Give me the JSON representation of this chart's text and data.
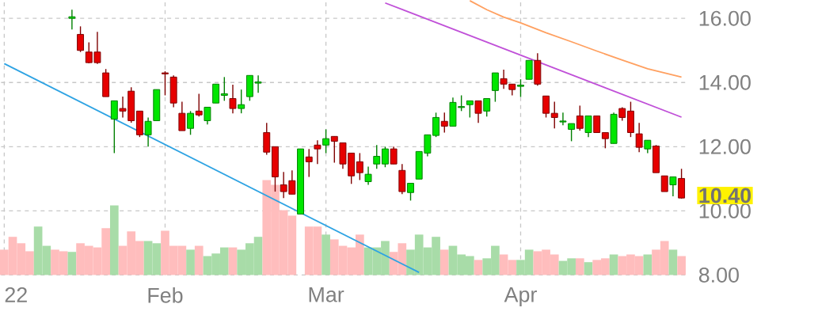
{
  "chart_data": {
    "type": "candlestick",
    "categories": [
      "22",
      null,
      null,
      null,
      null,
      null,
      null,
      null,
      null,
      null,
      null,
      null,
      null,
      null,
      null,
      null,
      null,
      null,
      null,
      "Feb",
      null,
      null,
      null,
      null,
      null,
      null,
      null,
      null,
      null,
      null,
      null,
      null,
      null,
      null,
      null,
      null,
      null,
      null,
      "Mar",
      null,
      null,
      null,
      null,
      null,
      null,
      null,
      null,
      null,
      null,
      null,
      null,
      null,
      null,
      null,
      null,
      null,
      null,
      null,
      null,
      null,
      null,
      "Apr",
      null,
      null,
      null,
      null,
      null,
      null,
      null,
      null,
      null,
      null,
      null,
      null,
      null,
      null,
      null,
      null,
      null,
      null,
      null
    ],
    "ohlc": [
      null,
      null,
      null,
      null,
      null,
      null,
      null,
      null,
      [
        16.0,
        16.27,
        15.65,
        16.05
      ],
      [
        15.5,
        15.75,
        14.95,
        15.0
      ],
      [
        14.95,
        15.25,
        14.6,
        14.62
      ],
      [
        14.95,
        15.58,
        14.58,
        14.62
      ],
      [
        14.3,
        14.42,
        13.56,
        13.56
      ],
      [
        12.86,
        13.43,
        11.8,
        13.43
      ],
      [
        13.19,
        13.56,
        12.91,
        13.11
      ],
      [
        13.73,
        13.85,
        12.75,
        12.81
      ],
      [
        13.11,
        13.11,
        12.3,
        12.37
      ],
      [
        12.37,
        12.91,
        12.0,
        12.79
      ],
      [
        12.81,
        13.78,
        12.81,
        13.78
      ],
      [
        14.3,
        14.35,
        13.6,
        14.27
      ],
      [
        14.17,
        14.22,
        13.23,
        13.36
      ],
      [
        13.04,
        13.4,
        12.5,
        12.5
      ],
      [
        12.57,
        13.11,
        12.37,
        13.04
      ],
      [
        13.11,
        13.65,
        12.94,
        12.99
      ],
      [
        12.81,
        13.23,
        12.69,
        13.23
      ],
      [
        13.36,
        13.95,
        13.36,
        13.95
      ],
      [
        13.6,
        14.17,
        13.43,
        13.65
      ],
      [
        13.5,
        13.93,
        13.04,
        13.19
      ],
      [
        13.19,
        13.78,
        13.04,
        13.31
      ],
      [
        13.56,
        14.22,
        13.43,
        14.22
      ],
      [
        13.98,
        14.22,
        13.68,
        14.02
      ],
      [
        12.44,
        12.74,
        11.75,
        11.83
      ],
      [
        12.0,
        12.0,
        10.6,
        11.06
      ],
      [
        10.81,
        11.21,
        10.4,
        10.6
      ],
      [
        10.94,
        11.26,
        10.52,
        10.52
      ],
      [
        9.9,
        11.93,
        9.9,
        11.93
      ],
      [
        11.68,
        11.93,
        11.06,
        11.53
      ],
      [
        12.05,
        12.2,
        11.46,
        11.93
      ],
      [
        12.05,
        12.54,
        11.8,
        12.25
      ],
      [
        12.32,
        12.32,
        11.5,
        12.17
      ],
      [
        12.12,
        12.12,
        11.31,
        11.46
      ],
      [
        11.8,
        11.8,
        10.84,
        11.09
      ],
      [
        11.53,
        11.8,
        10.96,
        11.19
      ],
      [
        10.91,
        11.38,
        10.81,
        11.14
      ],
      [
        11.46,
        12.05,
        11.31,
        11.7
      ],
      [
        11.46,
        12.0,
        11.36,
        11.93
      ],
      [
        11.93,
        12.0,
        11.46,
        11.46
      ],
      [
        11.26,
        11.46,
        10.52,
        10.6
      ],
      [
        10.57,
        10.86,
        10.32,
        10.86
      ],
      [
        10.99,
        11.85,
        10.99,
        11.85
      ],
      [
        11.8,
        12.37,
        11.7,
        12.37
      ],
      [
        12.35,
        13.06,
        12.3,
        12.91
      ],
      [
        12.79,
        13.06,
        12.44,
        12.64
      ],
      [
        12.64,
        13.53,
        12.64,
        13.38
      ],
      [
        13.22,
        13.6,
        13.11,
        13.25
      ],
      [
        13.31,
        13.43,
        12.91,
        13.43
      ],
      [
        13.43,
        13.43,
        12.74,
        13.04
      ],
      [
        13.11,
        13.5,
        12.94,
        13.5
      ],
      [
        13.75,
        14.3,
        13.4,
        14.3
      ],
      [
        14.12,
        14.4,
        13.8,
        13.95
      ],
      [
        13.95,
        13.95,
        13.6,
        13.78
      ],
      [
        13.88,
        14.1,
        13.55,
        13.92
      ],
      [
        14.1,
        14.69,
        14.1,
        14.69
      ],
      [
        14.69,
        14.91,
        13.9,
        13.95
      ],
      [
        13.58,
        13.58,
        12.91,
        13.04
      ],
      [
        13.04,
        13.4,
        12.57,
        12.91
      ],
      [
        12.77,
        13.06,
        12.67,
        12.8
      ],
      [
        12.54,
        12.72,
        12.17,
        12.72
      ],
      [
        12.96,
        13.28,
        12.5,
        12.57
      ],
      [
        12.44,
        12.96,
        12.3,
        12.96
      ],
      [
        12.96,
        12.96,
        12.44,
        12.44
      ],
      [
        12.44,
        12.44,
        11.95,
        12.25
      ],
      [
        12.1,
        13.06,
        12.1,
        13.01
      ],
      [
        13.19,
        13.23,
        12.81,
        12.91
      ],
      [
        13.11,
        13.4,
        12.3,
        12.44
      ],
      [
        12.4,
        12.74,
        11.83,
        11.98
      ],
      [
        11.93,
        12.2,
        11.8,
        12.2
      ],
      [
        12.02,
        12.05,
        11.19,
        11.19
      ],
      [
        11.09,
        11.09,
        10.6,
        10.6
      ],
      [
        10.81,
        11.06,
        10.45,
        11.06
      ],
      [
        11.01,
        11.31,
        10.38,
        10.4
      ]
    ],
    "colors": [
      null,
      null,
      null,
      null,
      null,
      null,
      null,
      null,
      "#00e600",
      "#e60000",
      "#e60000",
      "#e60000",
      "#e60000",
      "#00e600",
      "#e60000",
      "#e60000",
      "#e60000",
      "#00e600",
      "#00e600",
      "#e60000",
      "#e60000",
      "#e60000",
      "#00e600",
      "#e60000",
      "#00e600",
      "#00e600",
      "#00e600",
      "#e60000",
      "#00e600",
      "#00e600",
      "#00e600",
      "#e60000",
      "#e60000",
      "#e60000",
      "#e60000",
      "#00e600",
      "#e60000",
      "#e60000",
      "#00e600",
      "#e60000",
      "#e60000",
      "#e60000",
      "#e60000",
      "#00e600",
      "#00e600",
      "#00e600",
      "#e60000",
      "#e60000",
      "#00e600",
      "#00e600",
      "#00e600",
      "#00e600",
      "#e60000",
      "#00e600",
      "#00e600",
      "#00e600",
      "#e60000",
      "#00e600",
      "#00e600",
      "#e60000",
      "#e60000",
      "#00e600",
      "#00e600",
      "#e60000",
      "#e60000",
      "#e60000",
      "#00e600",
      "#00e600",
      "#e60000",
      "#00e600",
      "#e60000",
      "#e60000",
      "#00e600",
      "#e60000",
      "#e60000",
      "#e60000",
      "#00e600",
      "#e60000",
      "#e60000",
      "#00e600",
      "#e60000"
    ],
    "series": [
      {
        "type": "bar",
        "values": [
          8.79,
          9.19,
          8.99,
          8.74,
          9.51,
          8.91,
          8.79,
          8.74,
          8.72,
          8.99,
          8.91,
          8.86,
          9.46,
          10.17,
          8.91,
          9.36,
          9.06,
          9.06,
          8.99,
          9.38,
          8.91,
          8.91,
          8.79,
          8.91,
          8.59,
          8.67,
          8.86,
          8.86,
          8.79,
          8.99,
          9.19,
          10.96,
          10.81,
          10.02,
          9.85,
          null,
          9.51,
          9.51,
          9.26,
          9.11,
          8.91,
          8.86,
          9.26,
          8.86,
          8.86,
          9.06,
          8.72,
          8.99,
          8.79,
          9.26,
          8.86,
          9.19,
          8.79,
          8.91,
          8.64,
          8.59,
          8.47,
          8.52,
          8.91,
          8.64,
          8.47,
          8.47,
          8.79,
          8.74,
          8.79,
          8.64,
          8.44,
          8.52,
          8.52,
          8.4,
          8.47,
          8.52,
          8.64,
          8.59,
          8.64,
          8.59,
          8.64,
          8.79,
          9.06,
          8.79,
          8.59
        ],
        "colors": [
          "#ffbdbd",
          "#ffbdbd",
          "#ffbdbd",
          "#ffbdbd",
          "#a8dca8",
          "#a8dca8",
          "#ffbdbd",
          "#ffbdbd",
          "#a8dca8",
          "#ffbdbd",
          "#ffbdbd",
          "#ffbdbd",
          "#ffbdbd",
          "#a8dca8",
          "#ffbdbd",
          "#ffbdbd",
          "#ffbdbd",
          "#a8dca8",
          "#a8dca8",
          "#ffbdbd",
          "#ffbdbd",
          "#ffbdbd",
          "#a8dca8",
          "#ffbdbd",
          "#a8dca8",
          "#a8dca8",
          "#a8dca8",
          "#ffbdbd",
          "#a8dca8",
          "#a8dca8",
          "#a8dca8",
          "#ffbdbd",
          "#ffbdbd",
          "#ffbdbd",
          "#ffbdbd",
          "#a8dca8",
          "#ffbdbd",
          "#ffbdbd",
          "#a8dca8",
          "#ffbdbd",
          "#ffbdbd",
          "#ffbdbd",
          "#ffbdbd",
          "#a8dca8",
          "#a8dca8",
          "#a8dca8",
          "#ffbdbd",
          "#ffbdbd",
          "#a8dca8",
          "#a8dca8",
          "#a8dca8",
          "#a8dca8",
          "#ffbdbd",
          "#a8dca8",
          "#a8dca8",
          "#a8dca8",
          "#ffbdbd",
          "#a8dca8",
          "#a8dca8",
          "#ffbdbd",
          "#ffbdbd",
          "#a8dca8",
          "#a8dca8",
          "#ffbdbd",
          "#ffbdbd",
          "#ffbdbd",
          "#a8dca8",
          "#a8dca8",
          "#ffbdbd",
          "#a8dca8",
          "#ffbdbd",
          "#ffbdbd",
          "#a8dca8",
          "#ffbdbd",
          "#ffbdbd",
          "#ffbdbd",
          "#a8dca8",
          "#ffbdbd",
          "#ffbdbd",
          "#a8dca8",
          "#ffbdbd"
        ]
      },
      {
        "type": "line",
        "color": "#2ea3e3",
        "values": [
          14.59,
          null,
          null,
          null,
          null,
          null,
          null,
          null,
          null,
          null,
          null,
          null,
          null,
          null,
          null,
          null,
          null,
          null,
          null,
          null,
          null,
          null,
          null,
          null,
          null,
          null,
          null,
          null,
          null,
          null,
          null,
          null,
          null,
          null,
          null,
          null,
          null,
          null,
          null,
          null,
          null,
          null,
          null,
          null,
          null,
          null,
          null,
          null,
          null,
          8.08,
          null,
          null,
          null,
          null,
          null,
          null,
          null,
          null,
          null,
          null,
          null,
          null,
          null,
          null,
          null,
          null,
          null,
          null,
          null,
          null,
          null,
          null,
          null,
          null,
          null,
          null,
          null,
          null,
          null,
          null,
          null
        ]
      },
      {
        "type": "line",
        "color": "#c050d8",
        "values": [
          null,
          null,
          null,
          null,
          null,
          null,
          null,
          null,
          null,
          null,
          null,
          null,
          null,
          null,
          null,
          null,
          null,
          null,
          null,
          null,
          null,
          null,
          null,
          null,
          null,
          null,
          null,
          null,
          null,
          null,
          null,
          null,
          null,
          null,
          null,
          null,
          null,
          null,
          null,
          null,
          null,
          null,
          null,
          null,
          null,
          16.48,
          null,
          null,
          null,
          null,
          null,
          null,
          null,
          null,
          null,
          null,
          null,
          null,
          null,
          null,
          null,
          null,
          null,
          null,
          null,
          null,
          null,
          null,
          null,
          null,
          null,
          null,
          null,
          null,
          null,
          null,
          null,
          null,
          null,
          null,
          12.92
        ]
      },
      {
        "type": "line",
        "color": "#ffa060",
        "values": [
          null,
          null,
          null,
          null,
          null,
          null,
          null,
          null,
          null,
          null,
          null,
          null,
          null,
          null,
          null,
          null,
          null,
          null,
          null,
          null,
          null,
          null,
          null,
          null,
          null,
          null,
          null,
          null,
          null,
          null,
          null,
          null,
          null,
          null,
          null,
          null,
          null,
          null,
          null,
          null,
          null,
          null,
          null,
          null,
          null,
          null,
          null,
          null,
          null,
          null,
          null,
          null,
          null,
          null,
          null,
          16.55,
          null,
          16.27,
          null,
          16.04,
          null,
          15.86,
          null,
          null,
          15.55,
          null,
          null,
          15.27,
          null,
          null,
          14.98,
          null,
          null,
          14.7,
          null,
          null,
          14.43,
          null,
          null,
          null,
          14.17
        ]
      }
    ],
    "ylim": [
      8.0,
      16.55
    ],
    "yticks": [
      {
        "value": 8,
        "label": "8.00"
      },
      {
        "value": 10,
        "label": "10.00"
      },
      {
        "value": 12,
        "label": "12.00"
      },
      {
        "value": 14,
        "label": "14.00"
      },
      {
        "value": 16,
        "label": "16.00"
      }
    ],
    "grid": true,
    "annotations": [
      "10.40"
    ]
  }
}
